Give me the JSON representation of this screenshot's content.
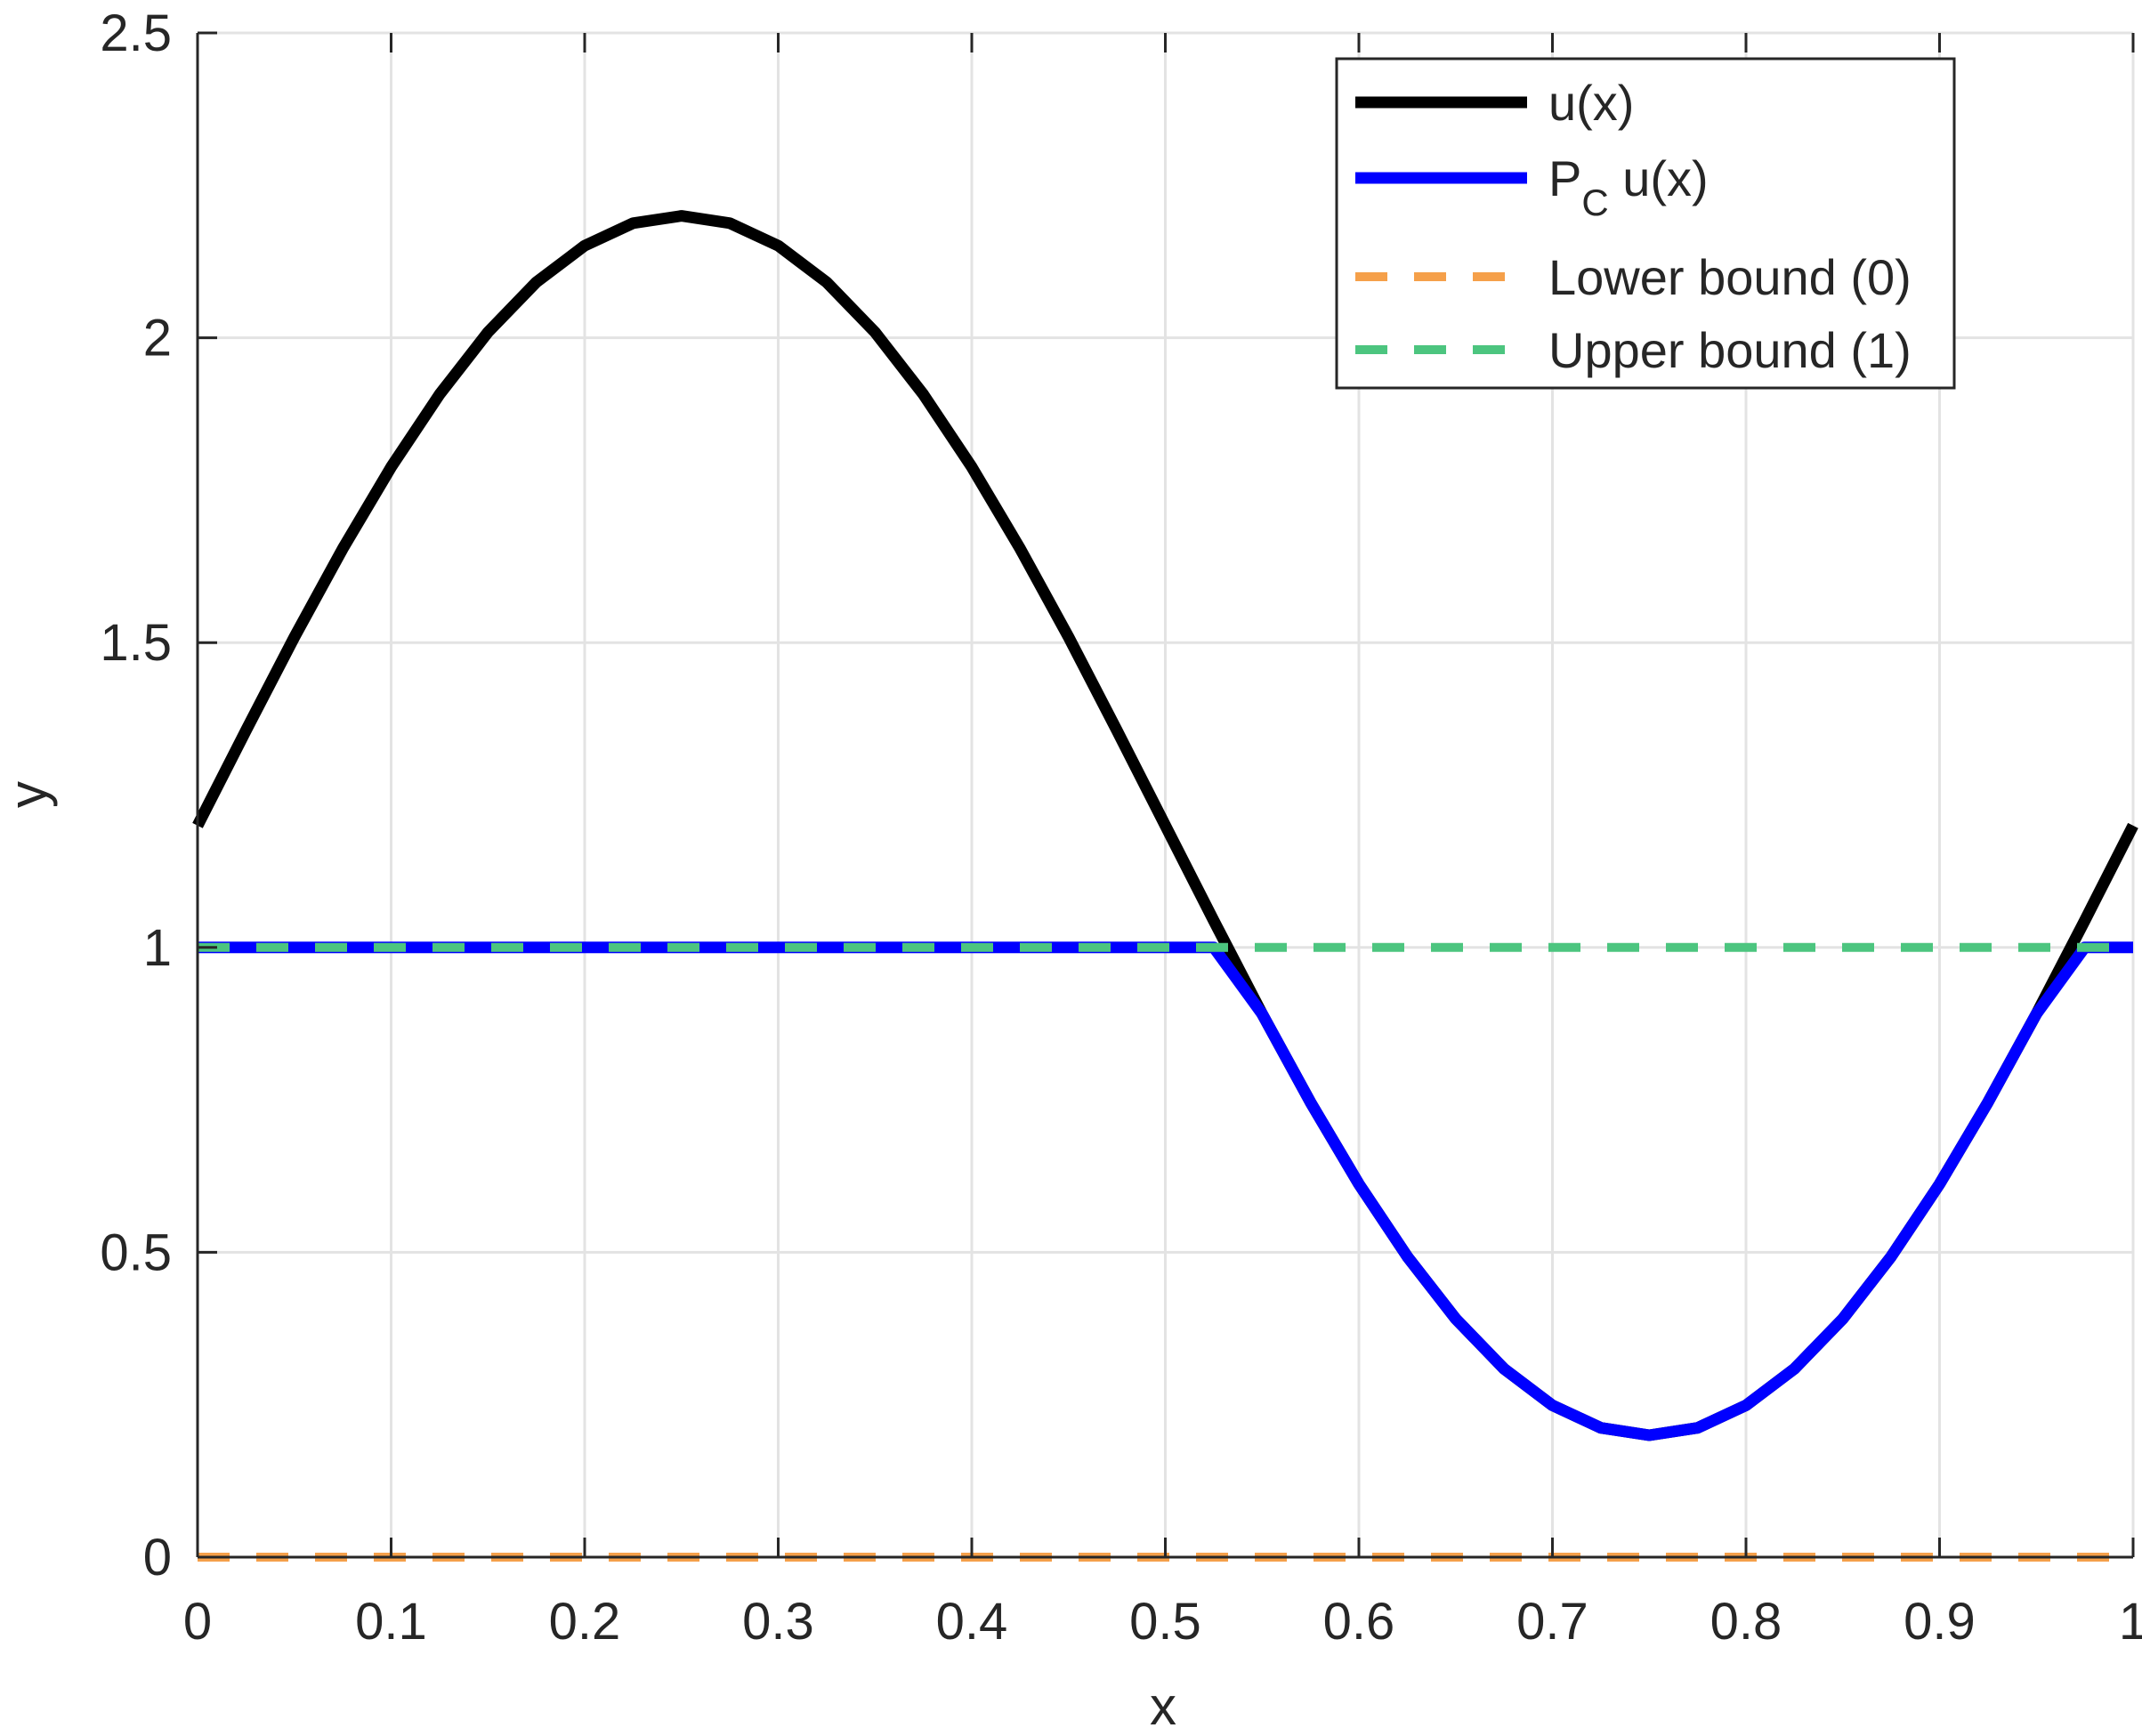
{
  "chart_data": {
    "type": "line",
    "xlabel": "x",
    "ylabel": "y",
    "xlim": [
      0,
      1
    ],
    "ylim": [
      0,
      2.5
    ],
    "xticks": [
      0,
      0.1,
      0.2,
      0.3,
      0.4,
      0.5,
      0.6,
      0.7,
      0.8,
      0.9,
      1
    ],
    "xtick_labels": [
      "0",
      "0.1",
      "0.2",
      "0.3",
      "0.4",
      "0.5",
      "0.6",
      "0.7",
      "0.8",
      "0.9",
      "1"
    ],
    "yticks": [
      0,
      0.5,
      1,
      1.5,
      2,
      2.5
    ],
    "ytick_labels": [
      "0",
      "0.5",
      "1",
      "1.5",
      "2",
      "2.5"
    ],
    "grid": true,
    "legend_position": "top-right",
    "series": [
      {
        "name": "u(x)",
        "color": "#000000",
        "style": "solid",
        "x": [
          0,
          0.025,
          0.05,
          0.075,
          0.1,
          0.125,
          0.15,
          0.175,
          0.2,
          0.225,
          0.25,
          0.275,
          0.3,
          0.325,
          0.35,
          0.375,
          0.4,
          0.425,
          0.45,
          0.475,
          0.5,
          0.525,
          0.55,
          0.575,
          0.6,
          0.625,
          0.65,
          0.675,
          0.7,
          0.725,
          0.75,
          0.775,
          0.8,
          0.825,
          0.85,
          0.875,
          0.9,
          0.925,
          0.95,
          0.975,
          1
        ],
        "y": [
          1.2,
          1.356,
          1.509,
          1.654,
          1.788,
          1.907,
          2.009,
          2.091,
          2.151,
          2.188,
          2.2,
          2.188,
          2.151,
          2.091,
          2.009,
          1.907,
          1.788,
          1.654,
          1.509,
          1.356,
          1.2,
          1.044,
          0.891,
          0.746,
          0.612,
          0.493,
          0.391,
          0.309,
          0.249,
          0.212,
          0.2,
          0.212,
          0.249,
          0.309,
          0.391,
          0.493,
          0.612,
          0.746,
          0.891,
          1.044,
          1.2
        ]
      },
      {
        "name": "P",
        "name_subscript": "C",
        "name_suffix": " u(x)",
        "color": "#0000ff",
        "style": "solid",
        "x": [
          0,
          0.025,
          0.05,
          0.075,
          0.1,
          0.125,
          0.15,
          0.175,
          0.2,
          0.225,
          0.25,
          0.275,
          0.3,
          0.325,
          0.35,
          0.375,
          0.4,
          0.425,
          0.45,
          0.475,
          0.5,
          0.525,
          0.55,
          0.575,
          0.6,
          0.625,
          0.65,
          0.675,
          0.7,
          0.725,
          0.75,
          0.775,
          0.8,
          0.825,
          0.85,
          0.875,
          0.9,
          0.925,
          0.95,
          0.975,
          1
        ],
        "y": [
          1,
          1,
          1,
          1,
          1,
          1,
          1,
          1,
          1,
          1,
          1,
          1,
          1,
          1,
          1,
          1,
          1,
          1,
          1,
          1,
          1,
          1,
          0.891,
          0.746,
          0.612,
          0.493,
          0.391,
          0.309,
          0.249,
          0.212,
          0.2,
          0.212,
          0.249,
          0.309,
          0.391,
          0.493,
          0.612,
          0.746,
          0.891,
          1,
          1
        ]
      },
      {
        "name": "Lower bound (0)",
        "color": "#f5a04a",
        "style": "dashed",
        "x": [
          0,
          1
        ],
        "y": [
          0,
          0
        ]
      },
      {
        "name": "Upper bound (1)",
        "color": "#4cc57f",
        "style": "dashed",
        "x": [
          0,
          1
        ],
        "y": [
          1,
          1
        ]
      }
    ]
  }
}
